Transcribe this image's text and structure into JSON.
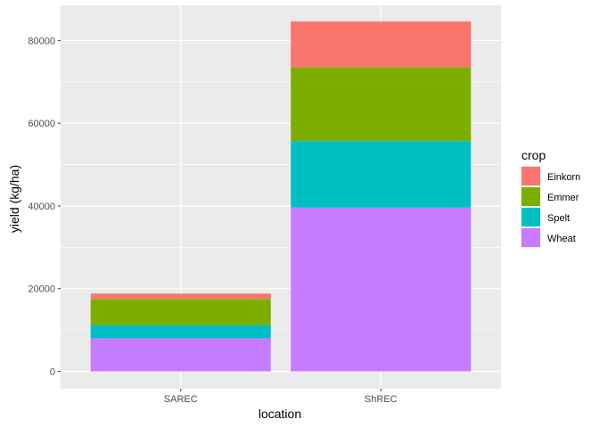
{
  "chart_data": {
    "type": "bar",
    "stacked": true,
    "title": "",
    "xlabel": "location",
    "ylabel": "yield (kg/ha)",
    "categories": [
      "SAREC",
      "ShREC"
    ],
    "ylim": [
      -4200,
      88500
    ],
    "yticks": [
      0,
      20000,
      40000,
      60000,
      80000
    ],
    "ytick_labels": [
      "0",
      "20000",
      "40000",
      "60000",
      "80000"
    ],
    "grid": true,
    "legend": {
      "title": "crop",
      "position": "right"
    },
    "series": [
      {
        "name": "Wheat",
        "color": "#C77CFF",
        "values": [
          8000,
          39600
        ]
      },
      {
        "name": "Spelt",
        "color": "#00BFC4",
        "values": [
          3200,
          16100
        ]
      },
      {
        "name": "Emmer",
        "color": "#7CAE00",
        "values": [
          6300,
          17800
        ]
      },
      {
        "name": "Einkorn",
        "color": "#F8766D",
        "values": [
          1300,
          11100
        ]
      }
    ],
    "legend_order": [
      "Einkorn",
      "Emmer",
      "Spelt",
      "Wheat"
    ]
  }
}
